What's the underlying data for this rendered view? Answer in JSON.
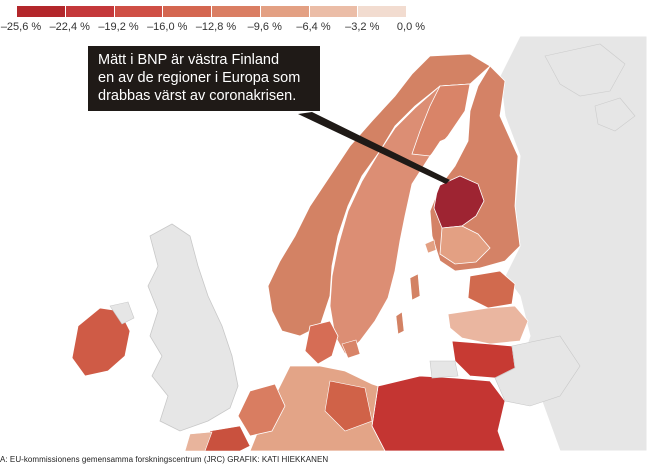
{
  "legend": {
    "ticks": [
      "–25,6 %",
      "–22,4 %",
      "–19,2 %",
      "–16,0 %",
      "–12,8 %",
      "–9,6 %",
      "–6,4 %",
      "–3,2 %",
      "0,0 %"
    ],
    "colors": [
      "#b3272b",
      "#c4383a",
      "#cf4f45",
      "#d46650",
      "#da7e63",
      "#e3a083",
      "#ebbda7",
      "#f2dcd0"
    ]
  },
  "callout": {
    "lines": [
      "Mätt i BNP är västra Finland",
      "en av de regioner i Europa som",
      "drabbas värst av coronakrisen."
    ]
  },
  "source": "A: EU-kommissionens gemensamma forskningscentrum (JRC) GRAFIK: KATI HIEKKANEN",
  "map_colors": {
    "no_data": "#e6e6e6",
    "sea": "#ffffff",
    "border": "#ffffff",
    "west_finland": "#9e2432",
    "norway": "#d38264",
    "sweden": "#dc8e74",
    "finland_rest": "#d48266",
    "ireland": "#cf5b46",
    "estonia": "#d16a4e",
    "latvia": "#eab6a0",
    "lithuania": "#c73a33",
    "poland": "#c43532",
    "denmark": "#d66d55",
    "germany_north": "#e3a487",
    "netherlands": "#d97d61"
  }
}
